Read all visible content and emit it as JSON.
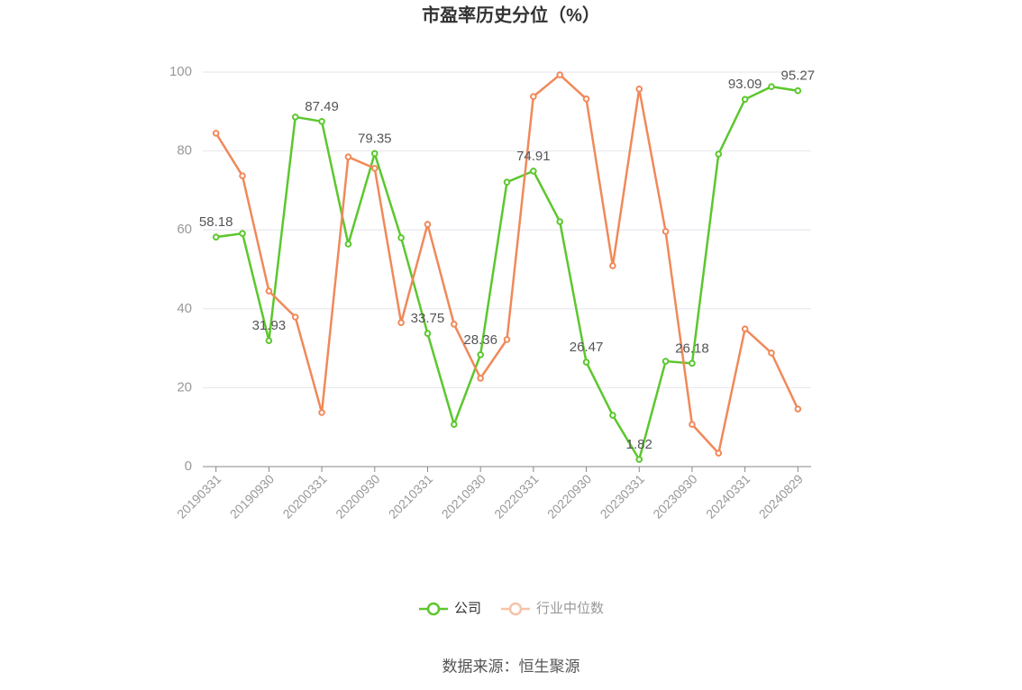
{
  "chart_data": {
    "type": "line",
    "title": "市盈率历史分位（%）",
    "source": "数据来源：恒生聚源",
    "categories": [
      "20190331",
      null,
      "20190930",
      null,
      "20200331",
      null,
      "20200930",
      null,
      "20210331",
      null,
      "20210930",
      null,
      "20220331",
      null,
      "20220930",
      null,
      "20230331",
      null,
      "20230930",
      null,
      "20240331",
      null,
      "20240829"
    ],
    "series": [
      {
        "name": "公司",
        "color": "#5cc72e",
        "values": [
          58.18,
          59.1,
          31.93,
          88.6,
          87.49,
          56.4,
          79.35,
          58.0,
          33.75,
          10.7,
          28.36,
          72.1,
          74.91,
          62.1,
          26.47,
          13.0,
          1.82,
          26.7,
          26.18,
          79.2,
          93.09,
          96.3,
          95.27
        ],
        "value_labels": [
          "58.18",
          null,
          "31.93",
          null,
          "87.49",
          null,
          "79.35",
          null,
          "33.75",
          null,
          "28.36",
          null,
          "74.91",
          null,
          "26.47",
          null,
          "1.82",
          null,
          "26.18",
          null,
          "93.09",
          null,
          "95.27"
        ]
      },
      {
        "name": "行业中位数",
        "color": "#f0895a",
        "values": [
          84.5,
          73.7,
          44.5,
          37.9,
          13.7,
          78.5,
          75.6,
          36.5,
          61.4,
          36.1,
          22.4,
          32.2,
          93.8,
          99.3,
          93.2,
          50.9,
          95.7,
          59.6,
          10.7,
          3.4,
          34.9,
          28.8,
          14.6
        ]
      }
    ],
    "ylim": [
      0,
      100
    ],
    "yticks": [
      0,
      20,
      40,
      60,
      80,
      100
    ],
    "grid": true
  }
}
